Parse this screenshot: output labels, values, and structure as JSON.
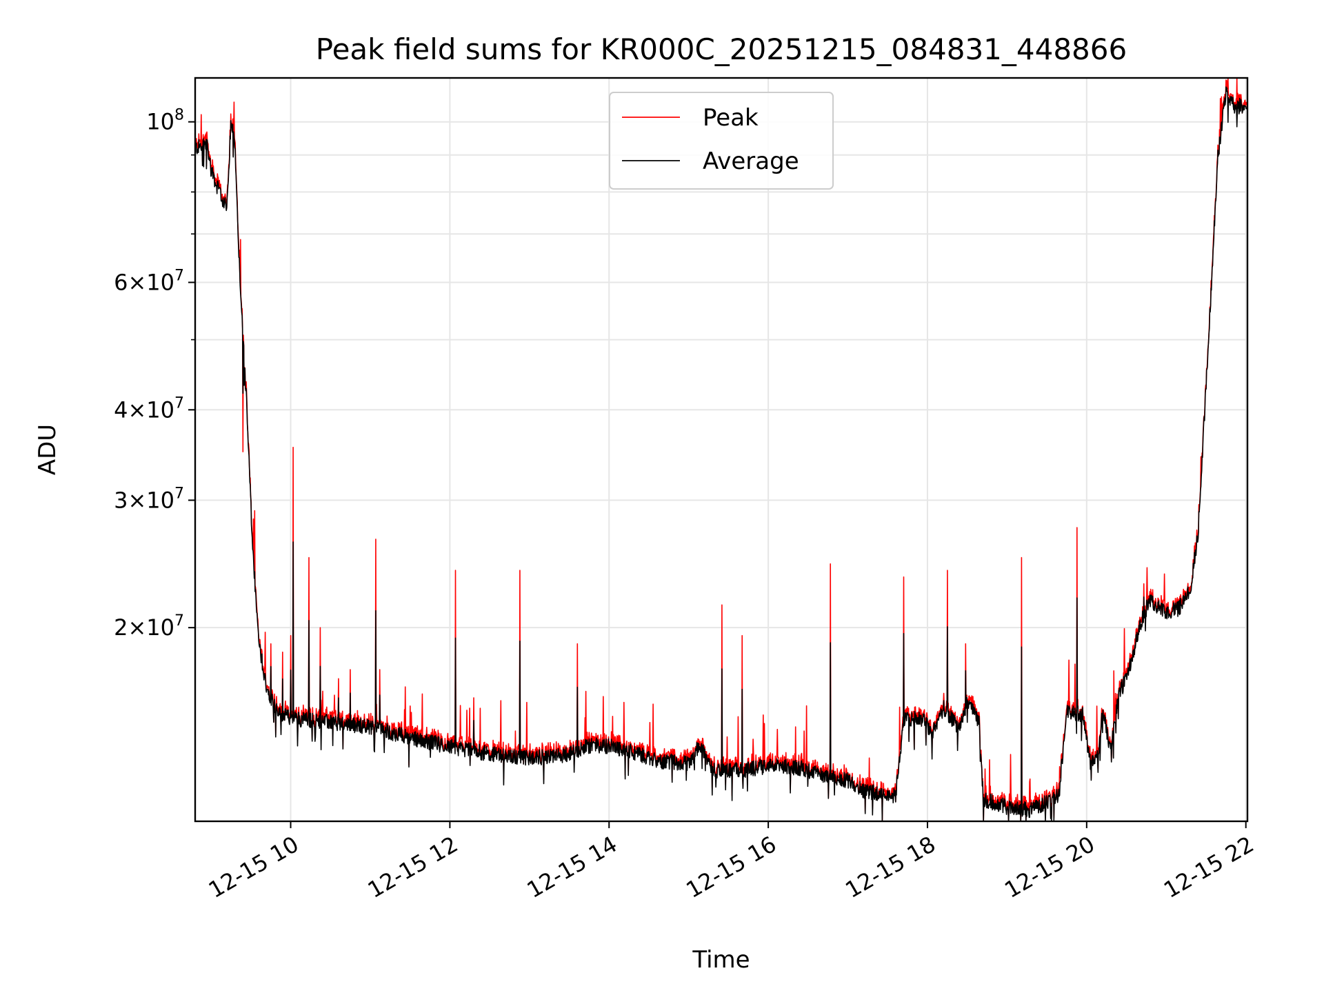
{
  "chart_data": {
    "type": "line",
    "title": "Peak field sums for KR000C_20251215_084831_448866",
    "xlabel": "Time",
    "ylabel": "ADU",
    "yscale": "log",
    "ylim": [
      10800000,
      115000000
    ],
    "xlim": [
      8.8,
      22.02
    ],
    "grid": true,
    "legend_position": "top-center",
    "x_ticks": [
      {
        "value": 10,
        "label": "12-15 10"
      },
      {
        "value": 12,
        "label": "12-15 12"
      },
      {
        "value": 14,
        "label": "12-15 14"
      },
      {
        "value": 16,
        "label": "12-15 16"
      },
      {
        "value": 18,
        "label": "12-15 18"
      },
      {
        "value": 20,
        "label": "12-15 20"
      },
      {
        "value": 22,
        "label": "12-15 22"
      }
    ],
    "y_ticks": [
      {
        "value": 100000000,
        "base": "10",
        "exp": "8",
        "mantissa": ""
      },
      {
        "value": 60000000,
        "base": "10",
        "exp": "7",
        "mantissa": "6"
      },
      {
        "value": 40000000,
        "base": "10",
        "exp": "7",
        "mantissa": "4"
      },
      {
        "value": 30000000,
        "base": "10",
        "exp": "7",
        "mantissa": "3"
      },
      {
        "value": 20000000,
        "base": "10",
        "exp": "7",
        "mantissa": "2"
      }
    ],
    "y_minor_ticks": [
      50000000,
      70000000,
      80000000,
      90000000
    ],
    "series": [
      {
        "name": "Peak",
        "color": "#ff0000"
      },
      {
        "name": "Average",
        "color": "#000000"
      }
    ],
    "average_profile": [
      [
        8.8,
        92000000
      ],
      [
        8.95,
        93000000
      ],
      [
        9.0,
        86000000
      ],
      [
        9.1,
        80000000
      ],
      [
        9.2,
        76000000
      ],
      [
        9.25,
        100000000
      ],
      [
        9.3,
        94000000
      ],
      [
        9.35,
        65000000
      ],
      [
        9.45,
        40000000
      ],
      [
        9.52,
        26000000
      ],
      [
        9.6,
        19000000
      ],
      [
        9.7,
        16500000
      ],
      [
        9.85,
        15200000
      ],
      [
        10.0,
        15000000
      ],
      [
        10.5,
        14800000
      ],
      [
        11.0,
        14600000
      ],
      [
        11.5,
        14100000
      ],
      [
        12.0,
        13700000
      ],
      [
        12.5,
        13400000
      ],
      [
        13.0,
        13200000
      ],
      [
        13.4,
        13300000
      ],
      [
        13.8,
        13800000
      ],
      [
        14.2,
        13600000
      ],
      [
        14.6,
        13100000
      ],
      [
        15.0,
        13000000
      ],
      [
        15.15,
        13800000
      ],
      [
        15.3,
        12700000
      ],
      [
        15.7,
        12700000
      ],
      [
        16.0,
        12900000
      ],
      [
        16.4,
        12800000
      ],
      [
        16.8,
        12400000
      ],
      [
        17.0,
        12300000
      ],
      [
        17.2,
        11900000
      ],
      [
        17.6,
        11700000
      ],
      [
        17.7,
        14900000
      ],
      [
        17.95,
        15000000
      ],
      [
        18.05,
        14200000
      ],
      [
        18.2,
        15500000
      ],
      [
        18.4,
        14500000
      ],
      [
        18.5,
        15800000
      ],
      [
        18.65,
        14800000
      ],
      [
        18.7,
        11600000
      ],
      [
        19.0,
        11300000
      ],
      [
        19.3,
        11200000
      ],
      [
        19.5,
        11500000
      ],
      [
        19.65,
        11700000
      ],
      [
        19.75,
        15300000
      ],
      [
        19.95,
        15200000
      ],
      [
        20.05,
        12900000
      ],
      [
        20.15,
        13300000
      ],
      [
        20.2,
        15500000
      ],
      [
        20.3,
        13500000
      ],
      [
        20.4,
        16200000
      ],
      [
        20.5,
        17000000
      ],
      [
        20.6,
        18700000
      ],
      [
        20.7,
        20700000
      ],
      [
        20.8,
        21800000
      ],
      [
        21.0,
        21000000
      ],
      [
        21.15,
        21200000
      ],
      [
        21.3,
        22500000
      ],
      [
        21.4,
        27000000
      ],
      [
        21.55,
        55000000
      ],
      [
        21.65,
        90000000
      ],
      [
        21.75,
        110000000
      ],
      [
        21.8,
        106000000
      ],
      [
        21.9,
        105000000
      ],
      [
        22.02,
        106000000
      ]
    ],
    "spikes": [
      {
        "x": 9.4,
        "peak": 35000000
      },
      {
        "x": 9.75,
        "peak": 19000000
      },
      {
        "x": 9.9,
        "peak": 18500000
      },
      {
        "x": 10.0,
        "peak": 19500000
      },
      {
        "x": 10.03,
        "peak": 35500000
      },
      {
        "x": 10.23,
        "peak": 25000000
      },
      {
        "x": 10.37,
        "peak": 20000000
      },
      {
        "x": 10.6,
        "peak": 17000000
      },
      {
        "x": 10.75,
        "peak": 17500000
      },
      {
        "x": 11.07,
        "peak": 26500000
      },
      {
        "x": 11.12,
        "peak": 17500000
      },
      {
        "x": 12.07,
        "peak": 24000000
      },
      {
        "x": 12.3,
        "peak": 16000000
      },
      {
        "x": 12.88,
        "peak": 24000000
      },
      {
        "x": 13.6,
        "peak": 19000000
      },
      {
        "x": 15.42,
        "peak": 21500000
      },
      {
        "x": 15.67,
        "peak": 19500000
      },
      {
        "x": 16.78,
        "peak": 24500000
      },
      {
        "x": 17.7,
        "peak": 23500000
      },
      {
        "x": 18.25,
        "peak": 24000000
      },
      {
        "x": 18.48,
        "peak": 19000000
      },
      {
        "x": 19.18,
        "peak": 25000000
      },
      {
        "x": 19.88,
        "peak": 27500000
      },
      {
        "x": 20.72,
        "peak": 23000000
      }
    ]
  }
}
